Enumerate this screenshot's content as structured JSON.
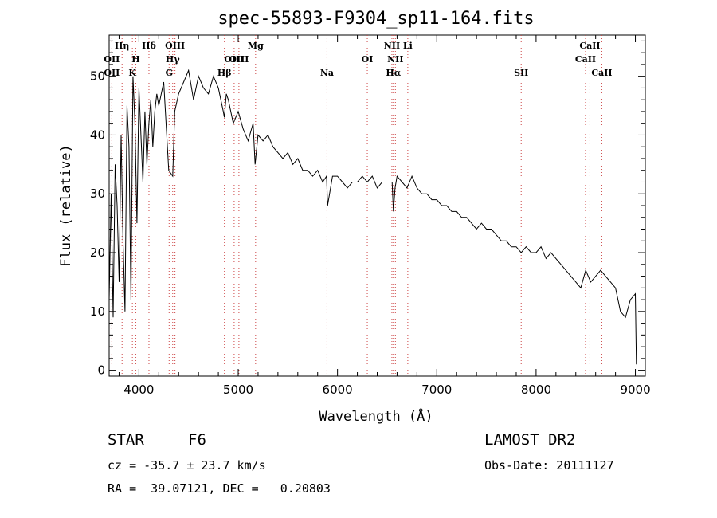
{
  "chart_data": {
    "type": "line",
    "title": "spec-55893-F9304_sp11-164.fits",
    "xlabel": "Wavelength (Å)",
    "ylabel": "Flux (relative)",
    "xlim": [
      3700,
      9100
    ],
    "ylim": [
      -1,
      57
    ],
    "x_ticks": [
      4000,
      5000,
      6000,
      7000,
      8000,
      9000
    ],
    "y_ticks": [
      0,
      10,
      20,
      30,
      40,
      50
    ],
    "grid": false,
    "series": [
      {
        "x": [
          3700,
          3720,
          3740,
          3760,
          3780,
          3800,
          3820,
          3840,
          3860,
          3880,
          3900,
          3920,
          3940,
          3960,
          3980,
          4000,
          4020,
          4040,
          4060,
          4080,
          4100,
          4120,
          4140,
          4160,
          4180,
          4200,
          4250,
          4300,
          4340,
          4360,
          4400,
          4450,
          4500,
          4550,
          4600,
          4650,
          4700,
          4750,
          4800,
          4850,
          4860,
          4880,
          4900,
          4950,
          5000,
          5050,
          5100,
          5150,
          5170,
          5200,
          5250,
          5300,
          5350,
          5400,
          5450,
          5500,
          5550,
          5600,
          5650,
          5700,
          5750,
          5800,
          5850,
          5890,
          5900,
          5950,
          6000,
          6050,
          6100,
          6150,
          6200,
          6250,
          6300,
          6350,
          6400,
          6450,
          6500,
          6550,
          6563,
          6580,
          6600,
          6650,
          6700,
          6750,
          6800,
          6850,
          6900,
          6950,
          7000,
          7050,
          7100,
          7150,
          7200,
          7250,
          7300,
          7350,
          7400,
          7450,
          7500,
          7550,
          7600,
          7650,
          7700,
          7750,
          7800,
          7850,
          7900,
          7950,
          8000,
          8050,
          8100,
          8150,
          8200,
          8250,
          8300,
          8350,
          8400,
          8450,
          8500,
          8550,
          8600,
          8650,
          8700,
          8750,
          8800,
          8850,
          8900,
          8950,
          9000,
          9010
        ],
        "y": [
          12,
          30,
          9,
          35,
          28,
          15,
          40,
          22,
          10,
          45,
          38,
          12,
          50,
          42,
          25,
          48,
          40,
          32,
          44,
          35,
          42,
          46,
          38,
          44,
          47,
          45,
          49,
          34,
          33,
          44,
          47,
          49,
          51,
          46,
          50,
          48,
          47,
          50,
          48,
          44,
          43,
          47,
          46,
          42,
          44,
          41,
          39,
          42,
          35,
          40,
          39,
          40,
          38,
          37,
          36,
          37,
          35,
          36,
          34,
          34,
          33,
          34,
          32,
          33,
          28,
          33,
          33,
          32,
          31,
          32,
          32,
          33,
          32,
          33,
          31,
          32,
          32,
          32,
          27,
          31,
          33,
          32,
          31,
          33,
          31,
          30,
          30,
          29,
          29,
          28,
          28,
          27,
          27,
          26,
          26,
          25,
          24,
          25,
          24,
          24,
          23,
          22,
          22,
          21,
          21,
          20,
          21,
          20,
          20,
          21,
          19,
          20,
          19,
          18,
          17,
          16,
          15,
          14,
          17,
          15,
          16,
          17,
          16,
          15,
          14,
          10,
          9,
          12,
          13,
          1
        ]
      }
    ],
    "line_labels": [
      {
        "wl": 3727,
        "label": "OII",
        "row": 2
      },
      {
        "wl": 3727,
        "label": "OII",
        "row": 3
      },
      {
        "wl": 3934,
        "label": "K",
        "row": 3
      },
      {
        "wl": 3968,
        "label": "H",
        "row": 2
      },
      {
        "wl": 4101,
        "label": "Hδ",
        "row": 1
      },
      {
        "wl": 4304,
        "label": "G",
        "row": 3
      },
      {
        "wl": 4340,
        "label": "Hγ",
        "row": 2
      },
      {
        "wl": 4363,
        "label": "OIII",
        "row": 1
      },
      {
        "wl": 4861,
        "label": "Hβ",
        "row": 3
      },
      {
        "wl": 4959,
        "label": "OIII",
        "row": 2
      },
      {
        "wl": 5007,
        "label": "OIII",
        "row": 2
      },
      {
        "wl": 5175,
        "label": "Mg",
        "row": 1
      },
      {
        "wl": 5894,
        "label": "Na",
        "row": 3
      },
      {
        "wl": 6300,
        "label": "OI",
        "row": 2
      },
      {
        "wl": 6548,
        "label": "NII",
        "row": 1
      },
      {
        "wl": 6563,
        "label": "Hα",
        "row": 3
      },
      {
        "wl": 6583,
        "label": "NII",
        "row": 2
      },
      {
        "wl": 6708,
        "label": "Li",
        "row": 1
      },
      {
        "wl": 7850,
        "label": "SII",
        "row": 3
      },
      {
        "wl": 8498,
        "label": "CaII",
        "row": 2
      },
      {
        "wl": 8542,
        "label": "CaII",
        "row": 1
      },
      {
        "wl": 8662,
        "label": "CaII",
        "row": 3
      },
      {
        "wl": 3830,
        "label": "Hη",
        "row": 1
      }
    ]
  },
  "info": {
    "class_label": "STAR",
    "subclass": "F6",
    "survey": "LAMOST DR2",
    "redshift_line": "cz = -35.7 ± 23.7 km/s",
    "obs_date": "Obs-Date: 20111127",
    "coords": "RA =  39.07121, DEC =   0.20803"
  }
}
